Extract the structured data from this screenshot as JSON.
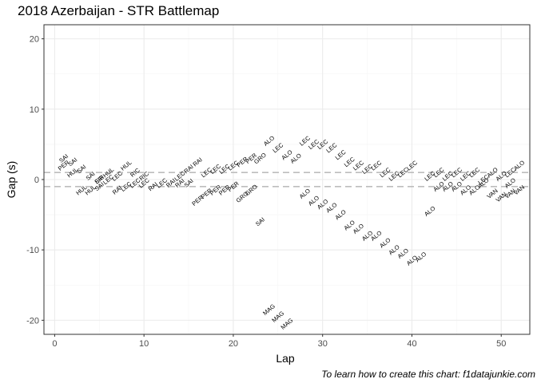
{
  "chart_data": {
    "type": "scatter",
    "title": "2018 Azerbaijan - STR Battlemap",
    "caption": "To learn how to create this chart: f1datajunkie.com",
    "xlabel": "Lap",
    "ylabel": "Gap (s)",
    "xlim": [
      -1.2,
      53.2
    ],
    "ylim": [
      -22,
      22
    ],
    "xticks": [
      0,
      10,
      20,
      30,
      40,
      50
    ],
    "yticks": [
      -20,
      -10,
      0,
      10,
      20
    ],
    "grid": true,
    "reference_lines": [
      1,
      -1
    ],
    "colors": {
      "grid_major": "#ebebeb",
      "grid_minor": "#f5f5f5",
      "border": "#333333",
      "refline": "#bdbdbd",
      "text": "#000000"
    },
    "series": [
      {
        "points": [
          {
            "x": 1,
            "y": 3,
            "label": "SAI"
          },
          {
            "x": 1,
            "y": 2,
            "label": "PER"
          },
          {
            "x": 2,
            "y": 2.5,
            "label": "SAI"
          },
          {
            "x": 2,
            "y": 1,
            "label": "HUL"
          },
          {
            "x": 3,
            "y": 1.5,
            "label": "SAI"
          },
          {
            "x": 3,
            "y": -1.5,
            "label": "HUL"
          },
          {
            "x": 4,
            "y": 0.5,
            "label": "SAI"
          },
          {
            "x": 4,
            "y": -1.5,
            "label": "HUL"
          },
          {
            "x": 5,
            "y": 0,
            "label": "ERI"
          },
          {
            "x": 5,
            "y": 0,
            "label": "SIR"
          },
          {
            "x": 5,
            "y": -1,
            "label": "SAI"
          },
          {
            "x": 6,
            "y": 1,
            "label": "HUL"
          },
          {
            "x": 6,
            "y": 0,
            "label": "LEC"
          },
          {
            "x": 7,
            "y": 0.5,
            "label": "LEC"
          },
          {
            "x": 7,
            "y": -1.5,
            "label": "RAI"
          },
          {
            "x": 8,
            "y": 2,
            "label": "HUL"
          },
          {
            "x": 8,
            "y": -1,
            "label": "LEC"
          },
          {
            "x": 9,
            "y": 1,
            "label": "RIC"
          },
          {
            "x": 9,
            "y": -0.5,
            "label": "LEC"
          },
          {
            "x": 10,
            "y": 0.5,
            "label": "RIC"
          },
          {
            "x": 10,
            "y": -0.5,
            "label": "LEC"
          },
          {
            "x": 11,
            "y": -1,
            "label": "RAI"
          },
          {
            "x": 12,
            "y": -0.5,
            "label": "LEC"
          },
          {
            "x": 13,
            "y": -0.5,
            "label": "RAI"
          },
          {
            "x": 14,
            "y": 0.5,
            "label": "LEC"
          },
          {
            "x": 14,
            "y": -0.5,
            "label": "RAI"
          },
          {
            "x": 15,
            "y": 1.5,
            "label": "RAI"
          },
          {
            "x": 15,
            "y": -0.5,
            "label": "SAI"
          },
          {
            "x": 16,
            "y": 2.5,
            "label": "RAI"
          },
          {
            "x": 16,
            "y": -3,
            "label": "PER"
          },
          {
            "x": 17,
            "y": 1,
            "label": "LEC"
          },
          {
            "x": 17,
            "y": -2,
            "label": "PER"
          },
          {
            "x": 18,
            "y": 1.5,
            "label": "LEC"
          },
          {
            "x": 18,
            "y": -1.5,
            "label": "PER"
          },
          {
            "x": 19,
            "y": 1.5,
            "label": "LEC"
          },
          {
            "x": 19,
            "y": -1.5,
            "label": "PER"
          },
          {
            "x": 20,
            "y": 2,
            "label": "LEC"
          },
          {
            "x": 20,
            "y": -1,
            "label": "PER"
          },
          {
            "x": 21,
            "y": 2.5,
            "label": "PER"
          },
          {
            "x": 21,
            "y": -2.5,
            "label": "GRO"
          },
          {
            "x": 22,
            "y": 3,
            "label": "PER"
          },
          {
            "x": 22,
            "y": -1.5,
            "label": "GRO"
          },
          {
            "x": 23,
            "y": 3,
            "label": "GRO"
          },
          {
            "x": 23,
            "y": -6,
            "label": "SAI"
          },
          {
            "x": 24,
            "y": 5.5,
            "label": "ALO"
          },
          {
            "x": 24,
            "y": -18.5,
            "label": "MAG"
          },
          {
            "x": 25,
            "y": 4.5,
            "label": "LEC"
          },
          {
            "x": 25,
            "y": -19.5,
            "label": "MAG"
          },
          {
            "x": 26,
            "y": 3.5,
            "label": "ALO"
          },
          {
            "x": 26,
            "y": -20.5,
            "label": "MAG"
          },
          {
            "x": 27,
            "y": 3,
            "label": "ALO"
          },
          {
            "x": 28,
            "y": 5.5,
            "label": "LEC"
          },
          {
            "x": 28,
            "y": -2,
            "label": "ALO"
          },
          {
            "x": 29,
            "y": 5,
            "label": "LEC"
          },
          {
            "x": 29,
            "y": -3,
            "label": "ALO"
          },
          {
            "x": 30,
            "y": 5,
            "label": "LEC"
          },
          {
            "x": 30,
            "y": -3.5,
            "label": "ALO"
          },
          {
            "x": 31,
            "y": 4.5,
            "label": "LEC"
          },
          {
            "x": 31,
            "y": -4,
            "label": "ALO"
          },
          {
            "x": 32,
            "y": 3.5,
            "label": "LEC"
          },
          {
            "x": 32,
            "y": -5,
            "label": "ALO"
          },
          {
            "x": 33,
            "y": 2.5,
            "label": "LEC"
          },
          {
            "x": 33,
            "y": -6.5,
            "label": "ALO"
          },
          {
            "x": 34,
            "y": 2,
            "label": "LEC"
          },
          {
            "x": 34,
            "y": -7,
            "label": "ALO"
          },
          {
            "x": 35,
            "y": 1.5,
            "label": "LEC"
          },
          {
            "x": 35,
            "y": -8,
            "label": "ALO"
          },
          {
            "x": 36,
            "y": 2,
            "label": "LEC"
          },
          {
            "x": 36,
            "y": -8,
            "label": "ALO"
          },
          {
            "x": 37,
            "y": 1,
            "label": "LEC"
          },
          {
            "x": 37,
            "y": -9,
            "label": "ALO"
          },
          {
            "x": 38,
            "y": 0.5,
            "label": "LEC"
          },
          {
            "x": 38,
            "y": -10,
            "label": "ALO"
          },
          {
            "x": 39,
            "y": 1,
            "label": "LEC"
          },
          {
            "x": 39,
            "y": -10.5,
            "label": "ALO"
          },
          {
            "x": 40,
            "y": 2,
            "label": "LEC"
          },
          {
            "x": 40,
            "y": -11.5,
            "label": "ALO"
          },
          {
            "x": 41,
            "y": -11,
            "label": "ALO"
          },
          {
            "x": 42,
            "y": 0.5,
            "label": "LEC"
          },
          {
            "x": 42,
            "y": -4.5,
            "label": "ALO"
          },
          {
            "x": 43,
            "y": 1,
            "label": "LEC"
          },
          {
            "x": 43,
            "y": -1,
            "label": "ALO"
          },
          {
            "x": 44,
            "y": 0.5,
            "label": "LEC"
          },
          {
            "x": 44,
            "y": -1,
            "label": "ALO"
          },
          {
            "x": 45,
            "y": 1,
            "label": "LEC"
          },
          {
            "x": 45,
            "y": -1,
            "label": "ALO"
          },
          {
            "x": 46,
            "y": 0.5,
            "label": "LEC"
          },
          {
            "x": 46,
            "y": -1.5,
            "label": "ALO"
          },
          {
            "x": 47,
            "y": 1,
            "label": "LEC"
          },
          {
            "x": 47,
            "y": -1.5,
            "label": "ALO"
          },
          {
            "x": 48,
            "y": 0,
            "label": "LEC"
          },
          {
            "x": 48,
            "y": -0.5,
            "label": "ALO"
          },
          {
            "x": 49,
            "y": 1,
            "label": "ALO"
          },
          {
            "x": 49,
            "y": -2,
            "label": "VAN"
          },
          {
            "x": 50,
            "y": 0.5,
            "label": "ALO"
          },
          {
            "x": 50,
            "y": -2.5,
            "label": "VAN"
          },
          {
            "x": 51,
            "y": 1,
            "label": "LEC"
          },
          {
            "x": 51,
            "y": -0.5,
            "label": "ALO"
          },
          {
            "x": 51,
            "y": -2,
            "label": "VAN"
          },
          {
            "x": 52,
            "y": 2,
            "label": "ALO"
          },
          {
            "x": 52,
            "y": -1.5,
            "label": "VAN"
          }
        ]
      }
    ]
  }
}
